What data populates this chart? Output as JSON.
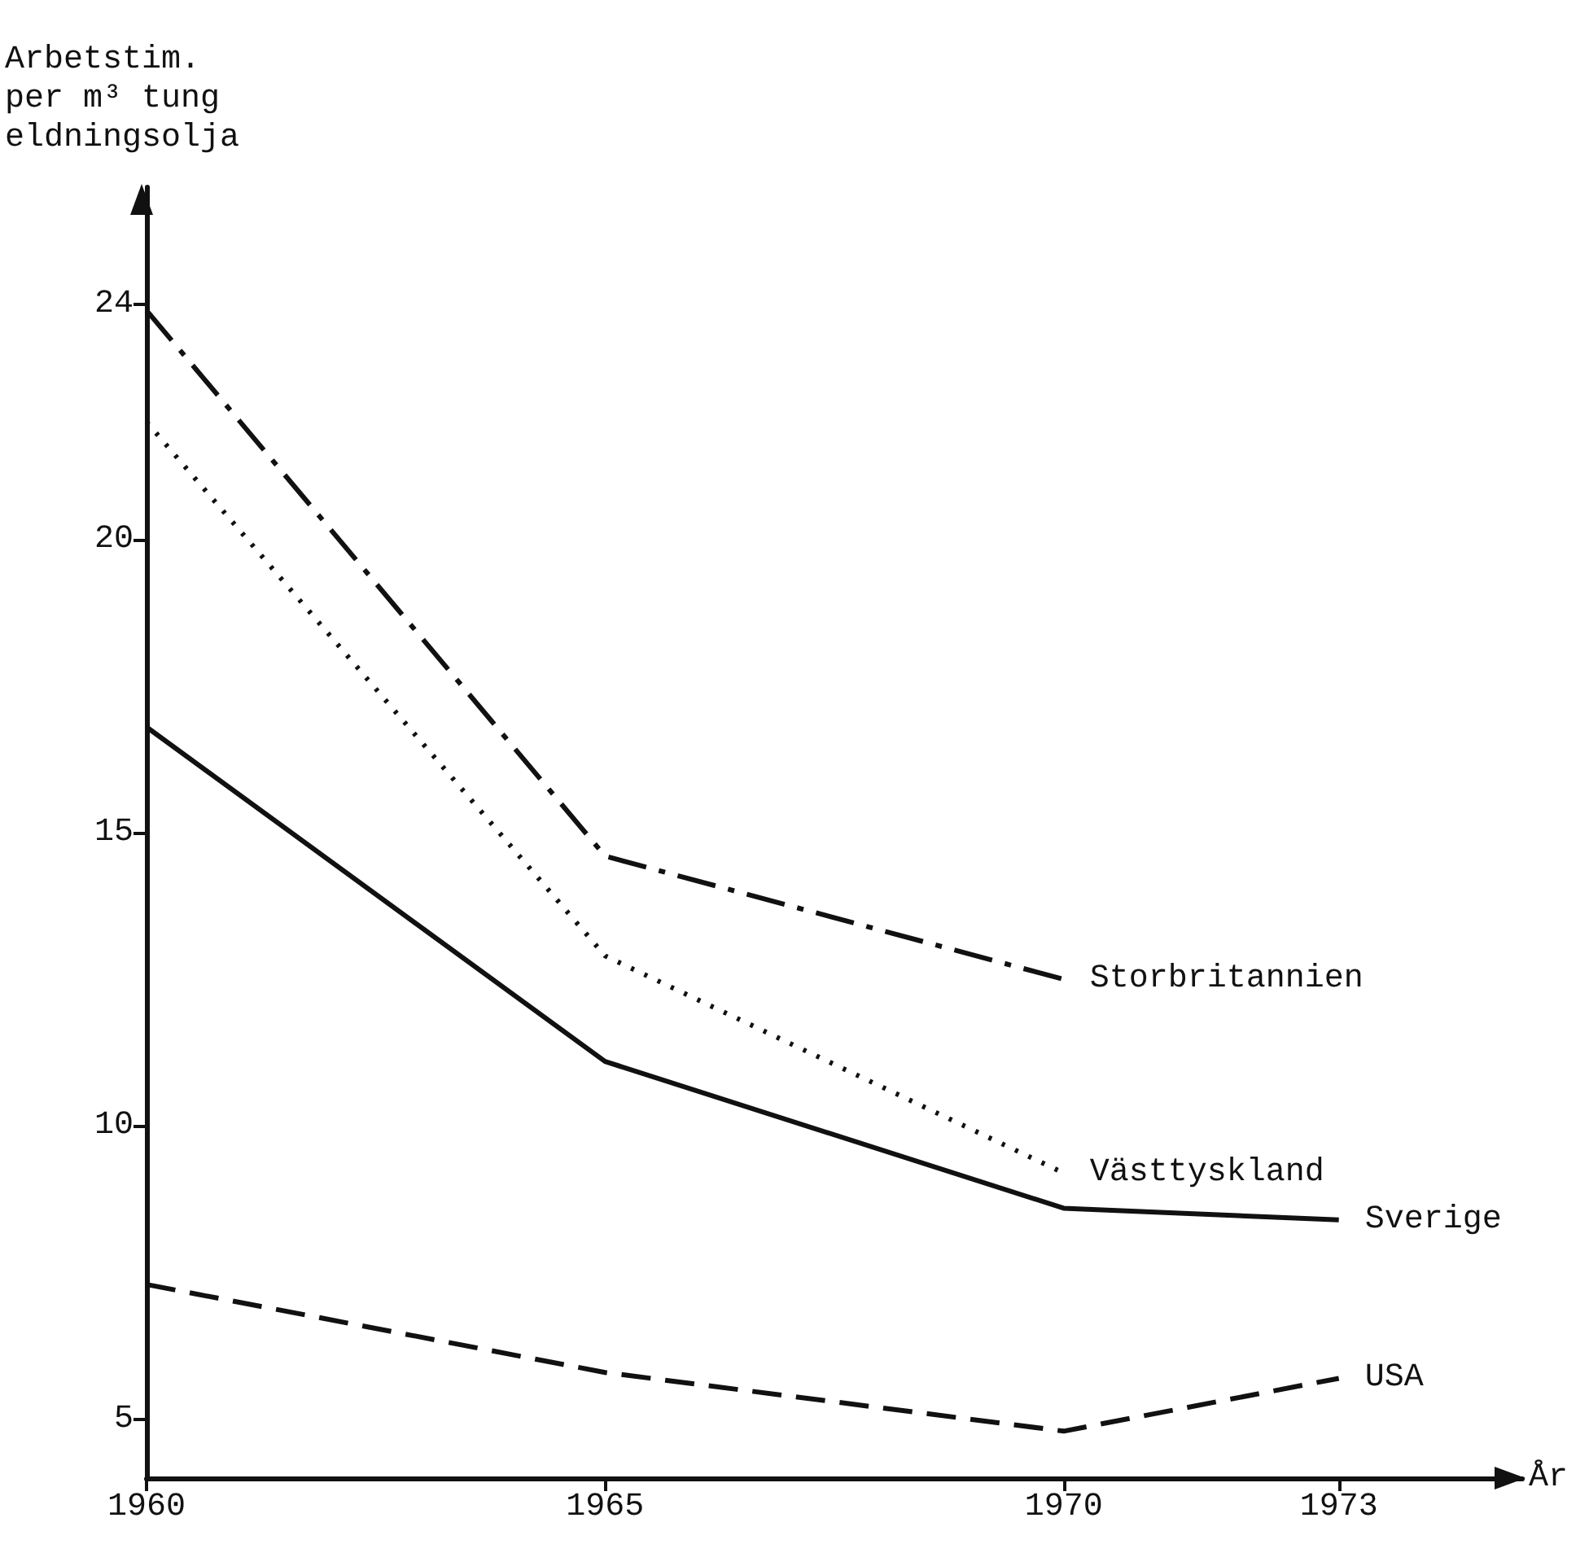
{
  "chart_data": {
    "type": "line",
    "xlabel": "År",
    "ylabel": "Arbetstim.\nper m³ tung\neldningsolja",
    "xlim": [
      1960,
      1975
    ],
    "ylim": [
      4,
      26
    ],
    "xticks": [
      1960,
      1965,
      1970,
      1973
    ],
    "yticks": [
      5,
      10,
      15,
      20,
      24
    ],
    "grid": false,
    "legend": false,
    "marker": "none",
    "series": [
      {
        "name": "Storbritannien",
        "color": "#111111",
        "line_style": "dashdot",
        "x": [
          1960,
          1965,
          1970
        ],
        "values": [
          23.9,
          14.6,
          12.5
        ]
      },
      {
        "name": "Västtyskland",
        "color": "#111111",
        "line_style": "dotted",
        "x": [
          1960,
          1965,
          1970
        ],
        "values": [
          22.0,
          12.9,
          9.2
        ]
      },
      {
        "name": "Sverige",
        "color": "#111111",
        "line_style": "solid",
        "x": [
          1960,
          1965,
          1970,
          1973
        ],
        "values": [
          16.8,
          11.1,
          8.6,
          8.4
        ]
      },
      {
        "name": "USA",
        "color": "#111111",
        "line_style": "dashed",
        "x": [
          1960,
          1965,
          1970,
          1973
        ],
        "values": [
          7.3,
          5.8,
          4.8,
          5.7
        ]
      }
    ]
  }
}
